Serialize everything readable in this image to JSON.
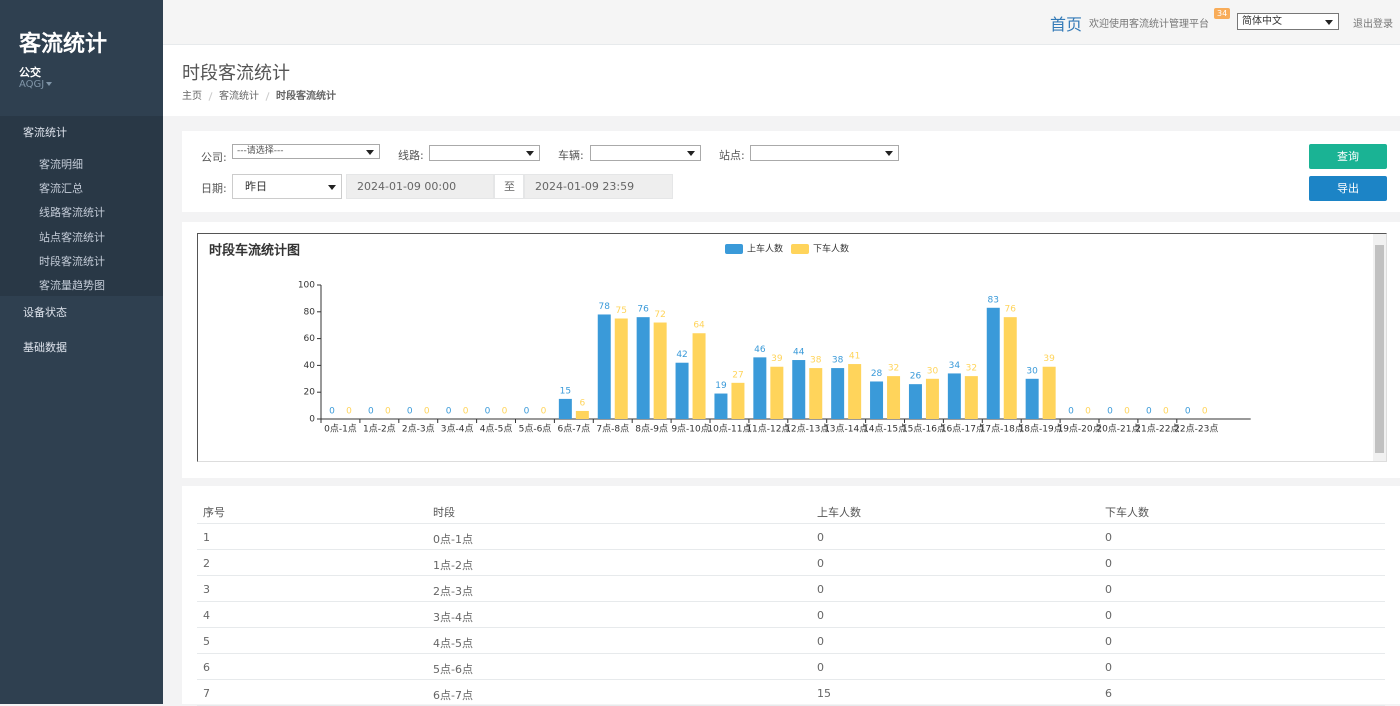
{
  "sidebar": {
    "brand": "客流统计",
    "user": "公交",
    "account": "AQGJ",
    "menu": [
      {
        "label": "客流统计",
        "children": [
          "客流明细",
          "客流汇总",
          "线路客流统计",
          "站点客流统计",
          "时段客流统计",
          "客流量趋势图"
        ]
      },
      {
        "label": "设备状态"
      },
      {
        "label": "基础数据"
      }
    ]
  },
  "topbar": {
    "home": "首页",
    "welcome": "欢迎使用客流统计管理平台",
    "badge": 34,
    "language": "简体中文",
    "logout": "退出登录"
  },
  "header": {
    "title": "时段客流统计",
    "breadcrumb": [
      "主页",
      "客流统计",
      "时段客流统计"
    ]
  },
  "filters": {
    "company_label": "公司:",
    "company_placeholder": "---请选择---",
    "route_label": "线路:",
    "vehicle_label": "车辆:",
    "station_label": "站点:",
    "date_label": "日期:",
    "date_option": "昨日",
    "start": "2024-01-09 00:00",
    "to": "至",
    "end": "2024-01-09 23:59",
    "query": "查询",
    "export": "导出"
  },
  "chart_data": {
    "type": "bar",
    "title": "时段车流统计图",
    "categories": [
      "0点-1点",
      "1点-2点",
      "2点-3点",
      "3点-4点",
      "4点-5点",
      "5点-6点",
      "6点-7点",
      "7点-8点",
      "8点-9点",
      "9点-10点",
      "10点-11点",
      "11点-12点",
      "12点-13点",
      "13点-14点",
      "14点-15点",
      "15点-16点",
      "16点-17点",
      "17点-18点",
      "18点-19点",
      "19点-20点",
      "20点-21点",
      "21点-22点",
      "22点-23点"
    ],
    "series": [
      {
        "name": "上车人数",
        "color": "#3a9ad9",
        "values": [
          0,
          0,
          0,
          0,
          0,
          0,
          15,
          78,
          76,
          42,
          19,
          46,
          44,
          38,
          28,
          26,
          34,
          83,
          30,
          0,
          0,
          0,
          0
        ]
      },
      {
        "name": "下车人数",
        "color": "#ffd45b",
        "values": [
          0,
          0,
          0,
          0,
          0,
          0,
          6,
          75,
          72,
          64,
          27,
          39,
          38,
          41,
          32,
          30,
          32,
          76,
          39,
          0,
          0,
          0,
          0
        ]
      }
    ],
    "ylim": [
      0,
      100
    ],
    "yticks": [
      0,
      20,
      40,
      60,
      80,
      100
    ]
  },
  "table": {
    "headers": [
      "序号",
      "时段",
      "上车人数",
      "下车人数"
    ],
    "rows": [
      [
        1,
        "0点-1点",
        0,
        0
      ],
      [
        2,
        "1点-2点",
        0,
        0
      ],
      [
        3,
        "2点-3点",
        0,
        0
      ],
      [
        4,
        "3点-4点",
        0,
        0
      ],
      [
        5,
        "4点-5点",
        0,
        0
      ],
      [
        6,
        "5点-6点",
        0,
        0
      ],
      [
        7,
        "6点-7点",
        15,
        6
      ]
    ]
  }
}
